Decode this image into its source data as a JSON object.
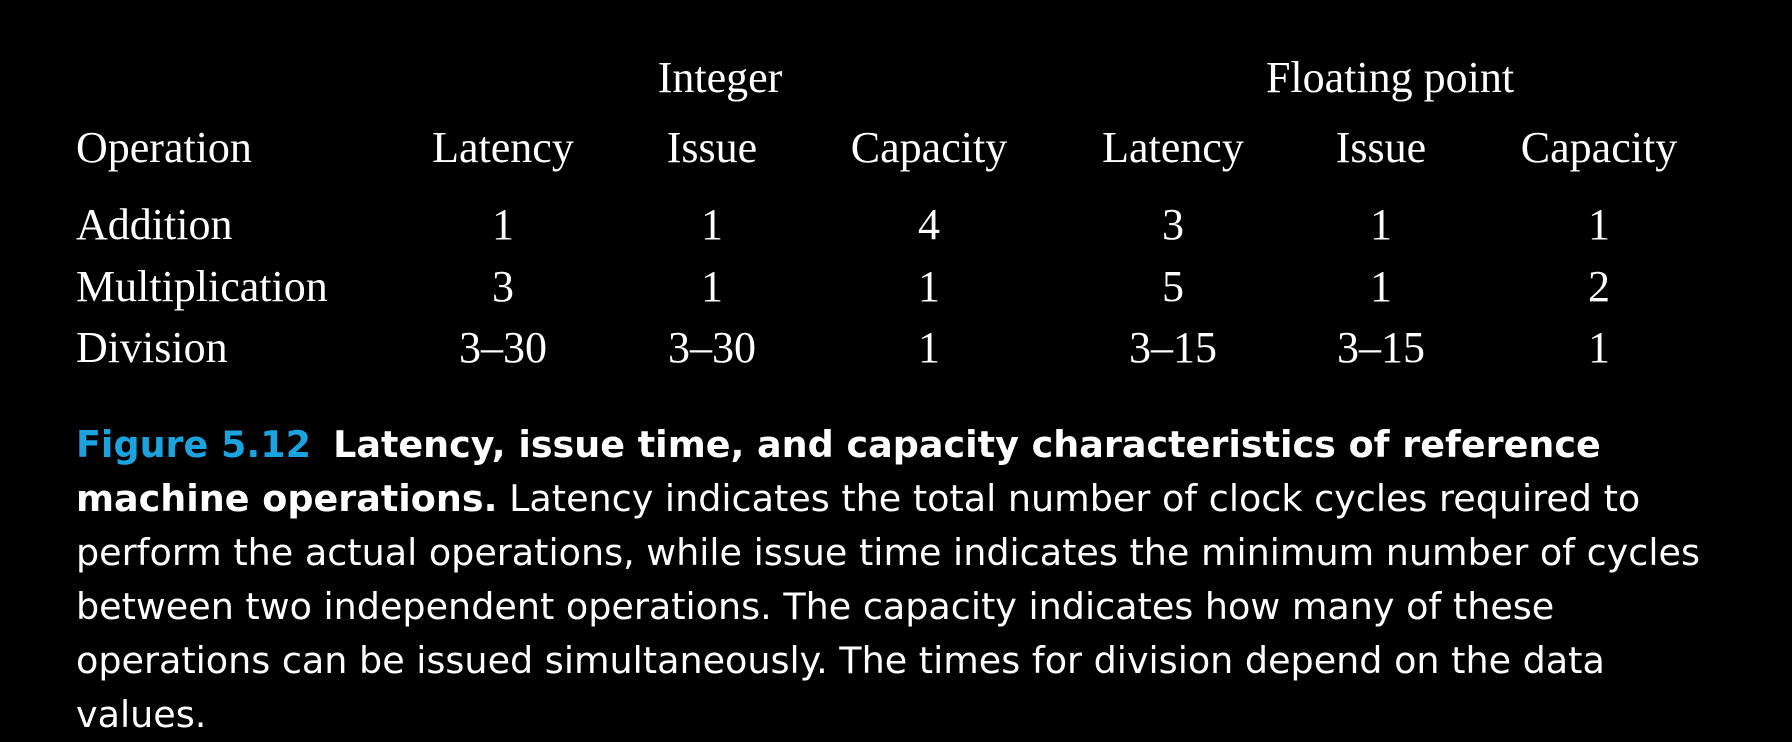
{
  "table": {
    "group_headers": {
      "integer": "Integer",
      "floating_point": "Floating point"
    },
    "columns": [
      "Operation",
      "Latency",
      "Issue",
      "Capacity",
      "Latency",
      "Issue",
      "Capacity"
    ],
    "rows": [
      {
        "operation": "Addition",
        "values": [
          "1",
          "1",
          "4",
          "3",
          "1",
          "1"
        ]
      },
      {
        "operation": "Multiplication",
        "values": [
          "3",
          "1",
          "1",
          "5",
          "1",
          "2"
        ]
      },
      {
        "operation": "Division",
        "values": [
          "3–30",
          "3–30",
          "1",
          "3–15",
          "3–15",
          "1"
        ]
      }
    ]
  },
  "caption": {
    "label": "Figure 5.12",
    "title": "Latency, issue time, and capacity characteristics of reference machine operations.",
    "body": "Latency indicates the total number of clock cycles required to perform the actual operations, while issue time indicates the minimum number of cycles between two independent operations. The capacity indicates how many of these operations can be issued simultaneously. The times for division depend on the data values."
  },
  "colors": {
    "background": "#000000",
    "text": "#ffffff",
    "figure_label": "#1ba3e0"
  }
}
